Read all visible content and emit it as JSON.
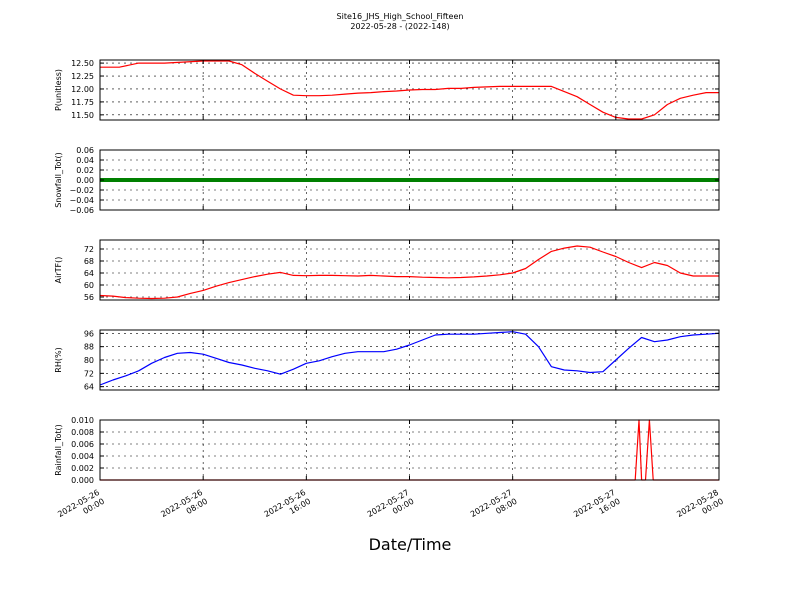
{
  "figure": {
    "title_line1": "Site16_JHS_High_School_Fifteen",
    "title_line2": "2022-05-28 - (2022-148)",
    "xlabel": "Date/Time"
  },
  "chart_data": [
    {
      "type": "line",
      "ylabel": "P(unitless)",
      "x_range": [
        "2022-05-26 00:00",
        "2022-05-28 00:00"
      ],
      "ylim": [
        11.4,
        12.56
      ],
      "yticks": [
        11.5,
        11.75,
        12.0,
        12.25,
        12.5
      ],
      "ytick_labels": [
        "11.50",
        "11.75",
        "12.00",
        "12.25",
        "12.50"
      ],
      "grid": true,
      "color": "#ff0000",
      "series": [
        {
          "x_hours": [
            0,
            1.5,
            3,
            5,
            8,
            10,
            11,
            12,
            13,
            14,
            15,
            16,
            17,
            18,
            19,
            20,
            21,
            22,
            23,
            24,
            25,
            26,
            27,
            28,
            29,
            30,
            31,
            32,
            33,
            34,
            35,
            36,
            37,
            38,
            39,
            40,
            41,
            42,
            43,
            44,
            45,
            46,
            47,
            48
          ],
          "values": [
            12.42,
            12.42,
            12.5,
            12.5,
            12.54,
            12.54,
            12.47,
            12.3,
            12.15,
            12.0,
            11.88,
            11.87,
            11.87,
            11.88,
            11.9,
            11.92,
            11.93,
            11.95,
            11.96,
            11.98,
            11.99,
            11.99,
            12.01,
            12.01,
            12.03,
            12.04,
            12.05,
            12.05,
            12.05,
            12.05,
            12.05,
            11.95,
            11.85,
            11.7,
            11.55,
            11.45,
            11.42,
            11.42,
            11.5,
            11.7,
            11.82,
            11.88,
            11.93,
            11.93
          ]
        }
      ]
    },
    {
      "type": "line",
      "ylabel": "Snowfall_Tot()",
      "x_range": [
        "2022-05-26 00:00",
        "2022-05-28 00:00"
      ],
      "ylim": [
        -0.06,
        0.06
      ],
      "yticks": [
        -0.06,
        -0.04,
        -0.02,
        0.0,
        0.02,
        0.04,
        0.06
      ],
      "ytick_labels": [
        "−0.06",
        "−0.04",
        "−0.02",
        "0.00",
        "0.02",
        "0.04",
        "0.06"
      ],
      "grid": true,
      "color": "#008000",
      "series": [
        {
          "x_hours": [
            0,
            48
          ],
          "values": [
            0,
            0
          ]
        }
      ]
    },
    {
      "type": "line",
      "ylabel": "AirTF()",
      "x_range": [
        "2022-05-26 00:00",
        "2022-05-28 00:00"
      ],
      "ylim": [
        55,
        75
      ],
      "yticks": [
        56,
        60,
        64,
        68,
        72
      ],
      "ytick_labels": [
        "56",
        "60",
        "64",
        "68",
        "72"
      ],
      "grid": true,
      "color": "#ff0000",
      "series": [
        {
          "x_hours": [
            0,
            1,
            2,
            3,
            4,
            5,
            6,
            7,
            8,
            9,
            10,
            11,
            12,
            13,
            14,
            15,
            16,
            17,
            18,
            19,
            20,
            21,
            22,
            23,
            24,
            25,
            26,
            27,
            28,
            29,
            30,
            31,
            32,
            33,
            34,
            35,
            36,
            37,
            38,
            39,
            40,
            41,
            42,
            43,
            44,
            45,
            46,
            47,
            48
          ],
          "values": [
            56.5,
            56.3,
            55.8,
            55.6,
            55.5,
            55.6,
            56.0,
            57.2,
            58.2,
            59.6,
            60.8,
            61.8,
            62.8,
            63.6,
            64.2,
            63.2,
            63.1,
            63.2,
            63.2,
            63.1,
            63.0,
            63.2,
            63.0,
            62.8,
            62.8,
            62.6,
            62.5,
            62.4,
            62.5,
            62.7,
            63.0,
            63.4,
            64.0,
            65.5,
            68.5,
            71.2,
            72.3,
            73.0,
            72.6,
            71.0,
            69.5,
            67.5,
            65.8,
            67.5,
            66.5,
            64.0,
            63.0,
            63.0,
            63.0
          ]
        }
      ]
    },
    {
      "type": "line",
      "ylabel": "RH(%)",
      "x_range": [
        "2022-05-26 00:00",
        "2022-05-28 00:00"
      ],
      "ylim": [
        62,
        98
      ],
      "yticks": [
        64,
        72,
        80,
        88,
        96
      ],
      "ytick_labels": [
        "64",
        "72",
        "80",
        "88",
        "96"
      ],
      "grid": true,
      "color": "#0000ff",
      "series": [
        {
          "x_hours": [
            0,
            1,
            2,
            3,
            4,
            5,
            6,
            7,
            8,
            9,
            10,
            11,
            12,
            13,
            14,
            15,
            16,
            17,
            18,
            19,
            20,
            21,
            22,
            23,
            24,
            25,
            26,
            27,
            28,
            29,
            30,
            31,
            32,
            33,
            34,
            35,
            36,
            37,
            38,
            39,
            40,
            41,
            42,
            43,
            44,
            45,
            46,
            47,
            48
          ],
          "values": [
            65.0,
            68.0,
            70.5,
            73.5,
            78.0,
            81.5,
            84.0,
            84.5,
            83.5,
            81.0,
            78.5,
            77.0,
            75.0,
            73.5,
            71.5,
            74.5,
            78.0,
            79.5,
            82.0,
            84.0,
            85.0,
            85.0,
            85.0,
            86.5,
            89.0,
            92.0,
            95.0,
            95.5,
            95.5,
            95.5,
            96.0,
            96.5,
            97.0,
            95.5,
            88.0,
            76.0,
            74.0,
            73.5,
            72.5,
            73.0,
            80.0,
            87.0,
            93.5,
            91.0,
            92.0,
            94.0,
            95.0,
            95.5,
            96.0
          ]
        }
      ]
    },
    {
      "type": "line",
      "ylabel": "Rainfall_Tot()",
      "x_range": [
        "2022-05-26 00:00",
        "2022-05-28 00:00"
      ],
      "ylim": [
        0,
        0.01
      ],
      "yticks": [
        0.0,
        0.002,
        0.004,
        0.006,
        0.008,
        0.01
      ],
      "ytick_labels": [
        "0.000",
        "0.002",
        "0.004",
        "0.006",
        "0.008",
        "0.010"
      ],
      "grid": true,
      "color": "#ff0000",
      "series": [
        {
          "x_hours": [
            0,
            41.5,
            41.8,
            42.0,
            42.3,
            42.6,
            42.9,
            43.2,
            48
          ],
          "values": [
            0,
            0,
            0.01,
            0,
            0,
            0.01,
            0,
            0,
            0
          ]
        }
      ]
    }
  ],
  "x_axis": {
    "tick_hours": [
      0,
      8,
      16,
      24,
      32,
      40,
      48
    ],
    "tick_labels": [
      [
        "2022-05-26",
        "00:00"
      ],
      [
        "2022-05-26",
        "08:00"
      ],
      [
        "2022-05-26",
        "16:00"
      ],
      [
        "2022-05-27",
        "00:00"
      ],
      [
        "2022-05-27",
        "08:00"
      ],
      [
        "2022-05-27",
        "16:00"
      ],
      [
        "2022-05-28",
        "00:00"
      ]
    ]
  }
}
